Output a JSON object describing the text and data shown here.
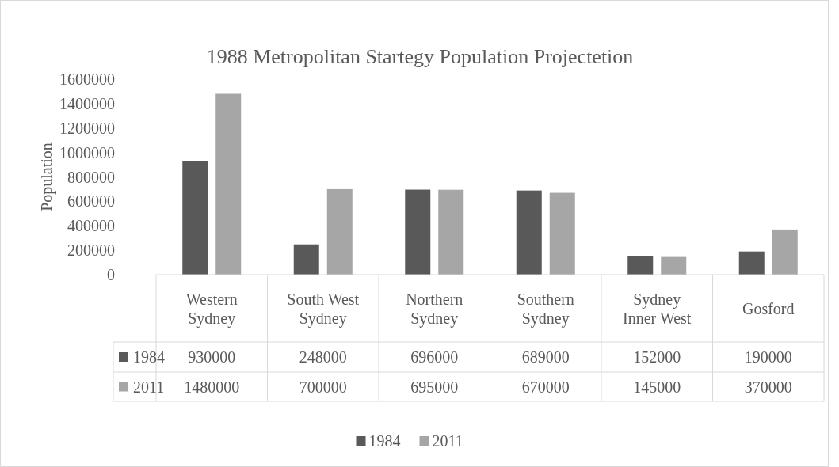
{
  "chart_data": {
    "type": "bar",
    "title": "1988 Metropolitan Startegy Population Projectetion",
    "ylabel": "Population",
    "categories": [
      "Western Sydney",
      "South West Sydney",
      "Northern Sydney",
      "Southern Sydney",
      "Sydney Inner West",
      "Gosford"
    ],
    "series": [
      {
        "name": "1984",
        "color": "#595959",
        "values": [
          930000,
          248000,
          696000,
          689000,
          152000,
          190000
        ]
      },
      {
        "name": "2011",
        "color": "#a6a6a6",
        "values": [
          1480000,
          700000,
          695000,
          670000,
          145000,
          370000
        ]
      }
    ],
    "ylim": [
      0,
      1600000
    ],
    "yticks": [
      0,
      200000,
      400000,
      600000,
      800000,
      1000000,
      1200000,
      1400000,
      1600000
    ],
    "data_labels": true,
    "legend": "bottom",
    "grid": false
  }
}
